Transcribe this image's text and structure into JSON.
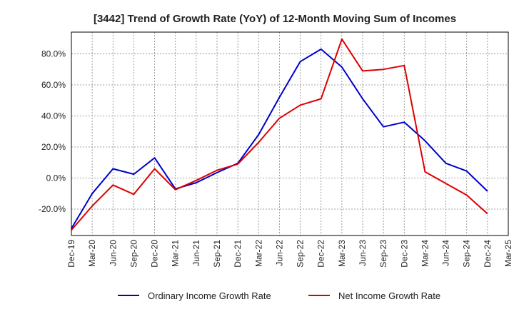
{
  "chart_data": {
    "type": "line",
    "title": "[3442]  Trend of Growth Rate (YoY) of 12-Month Moving Sum of Incomes",
    "x": [
      "Dec-19",
      "Mar-20",
      "Jun-20",
      "Sep-20",
      "Dec-20",
      "Mar-21",
      "Jun-21",
      "Sep-21",
      "Dec-21",
      "Mar-22",
      "Jun-22",
      "Sep-22",
      "Dec-22",
      "Mar-23",
      "Jun-23",
      "Sep-23",
      "Dec-23",
      "Mar-24",
      "Jun-24",
      "Sep-24",
      "Dec-24"
    ],
    "x_ticks": [
      "Dec-19",
      "Mar-20",
      "Jun-20",
      "Sep-20",
      "Dec-20",
      "Mar-21",
      "Jun-21",
      "Sep-21",
      "Dec-21",
      "Mar-22",
      "Jun-22",
      "Sep-22",
      "Dec-22",
      "Mar-23",
      "Jun-23",
      "Sep-23",
      "Dec-23",
      "Mar-24",
      "Jun-24",
      "Sep-24",
      "Dec-24",
      "Mar-25"
    ],
    "y_ticks": [
      "80.0%",
      "60.0%",
      "40.0%",
      "20.0%",
      "0.0%",
      "-20.0%"
    ],
    "ylim": [
      -37,
      94
    ],
    "y_tick_values": [
      80,
      60,
      40,
      20,
      0,
      -20
    ],
    "grid": true,
    "legend_position": "bottom",
    "series": [
      {
        "name": "Ordinary Income Growth Rate",
        "color": "#0000cc",
        "values": [
          -32.5,
          -10,
          6,
          2.5,
          13,
          -7,
          -3,
          3.5,
          9.5,
          28,
          52,
          75,
          83,
          71.5,
          51,
          33,
          36,
          24,
          9.5,
          4.5,
          -8.5
        ]
      },
      {
        "name": "Net Income Growth Rate",
        "color": "#dd0000",
        "values": [
          -33.5,
          -18,
          -4.5,
          -10.5,
          6,
          -7.5,
          -1.5,
          5,
          9,
          23,
          38.5,
          47,
          51,
          89.5,
          69,
          70,
          72.5,
          4,
          -3.5,
          -11,
          -23
        ]
      }
    ]
  }
}
